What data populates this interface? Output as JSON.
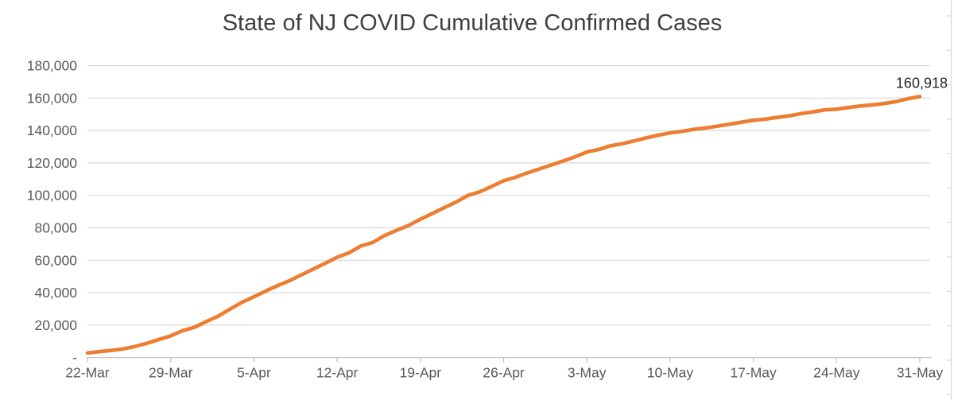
{
  "chart_data": {
    "type": "line",
    "title": "State of NJ COVID Cumulative Confirmed Cases",
    "xlabel": "",
    "ylabel": "",
    "ylim": [
      0,
      180000
    ],
    "y_tick_interval": 20000,
    "grid": "horizontal-only",
    "legend": "none",
    "x_tick_labels": [
      "22-Mar",
      "29-Mar",
      "5-Apr",
      "12-Apr",
      "19-Apr",
      "26-Apr",
      "3-May",
      "10-May",
      "17-May",
      "24-May",
      "31-May"
    ],
    "y_tick_labels": [
      "180,000",
      "160,000",
      "140,000",
      "120,000",
      "100,000",
      "80,000",
      "60,000",
      "40,000",
      "20,000",
      "-"
    ],
    "end_point_label": "160,918",
    "colors": {
      "line": "#ED7D31",
      "gridline": "#D9D9D9",
      "axis": "#BFBFBF",
      "tick_label": "#595959",
      "title": "#404040",
      "end_label": "#262626",
      "spreadsheet_edge": "#D8D8D8"
    },
    "series": [
      {
        "name": "NJ COVID cumulative confirmed cases",
        "x": [
          "22-Mar",
          "23-Mar",
          "24-Mar",
          "25-Mar",
          "26-Mar",
          "27-Mar",
          "28-Mar",
          "29-Mar",
          "30-Mar",
          "31-Mar",
          "1-Apr",
          "2-Apr",
          "3-Apr",
          "4-Apr",
          "5-Apr",
          "6-Apr",
          "7-Apr",
          "8-Apr",
          "9-Apr",
          "10-Apr",
          "11-Apr",
          "12-Apr",
          "13-Apr",
          "14-Apr",
          "15-Apr",
          "16-Apr",
          "17-Apr",
          "18-Apr",
          "19-Apr",
          "20-Apr",
          "21-Apr",
          "22-Apr",
          "23-Apr",
          "24-Apr",
          "25-Apr",
          "26-Apr",
          "27-Apr",
          "28-Apr",
          "29-Apr",
          "30-Apr",
          "1-May",
          "2-May",
          "3-May",
          "4-May",
          "5-May",
          "6-May",
          "7-May",
          "8-May",
          "9-May",
          "10-May",
          "11-May",
          "12-May",
          "13-May",
          "14-May",
          "15-May",
          "16-May",
          "17-May",
          "18-May",
          "19-May",
          "20-May",
          "21-May",
          "22-May",
          "23-May",
          "24-May",
          "25-May",
          "26-May",
          "27-May",
          "28-May",
          "29-May",
          "30-May",
          "31-May"
        ],
        "values": [
          2844,
          3675,
          4402,
          5325,
          6876,
          8825,
          11124,
          13386,
          16636,
          18696,
          22255,
          25590,
          29895,
          34124,
          37505,
          41090,
          44416,
          47437,
          51027,
          54588,
          58151,
          61850,
          64584,
          68824,
          71030,
          75317,
          78467,
          81420,
          85301,
          88806,
          92387,
          95865,
          99989,
          102196,
          105523,
          109038,
          111188,
          113856,
          116264,
          118652,
          121190,
          123717,
          126744,
          128269,
          130593,
          131890,
          133635,
          135454,
          137085,
          138532,
          139534,
          140743,
          141560,
          142704,
          143905,
          145089,
          146334,
          147015,
          148039,
          149013,
          150399,
          151472,
          152719,
          153140,
          154154,
          155092,
          155764,
          156628,
          157815,
          159608,
          160918
        ]
      }
    ]
  }
}
